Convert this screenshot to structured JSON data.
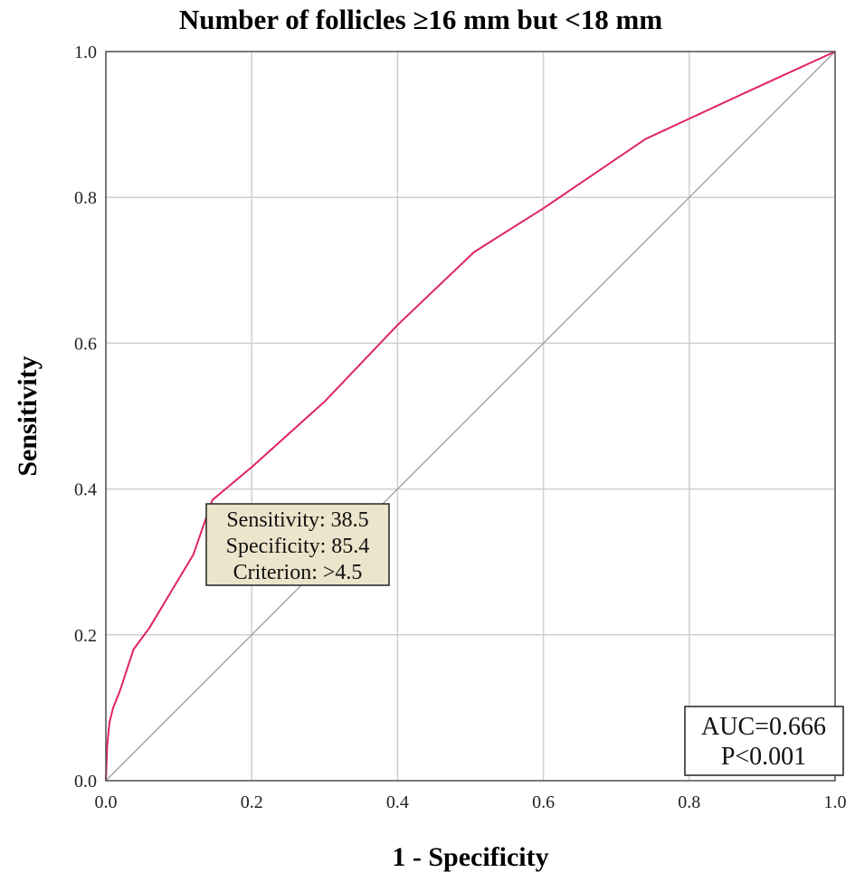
{
  "chart_data": {
    "type": "line",
    "title": "Number of follicles ≥16 mm but <18 mm",
    "xlabel": "1 - Specificity",
    "ylabel": "Sensitivity",
    "xlim": [
      0,
      1
    ],
    "ylim": [
      0,
      1
    ],
    "xticks": [
      "0.0",
      "0.2",
      "0.4",
      "0.6",
      "0.8",
      "1.0"
    ],
    "yticks": [
      "0.0",
      "0.2",
      "0.4",
      "0.6",
      "0.8",
      "1.0"
    ],
    "grid": true,
    "series": [
      {
        "color": "#e0245e",
        "x": [
          0,
          0.002,
          0.005,
          0.01,
          0.02,
          0.028,
          0.038,
          0.06,
          0.09,
          0.12,
          0.146,
          0.2,
          0.3,
          0.4,
          0.505,
          0.6,
          0.74,
          0.88,
          1.0
        ],
        "y": [
          0,
          0.05,
          0.08,
          0.1,
          0.125,
          0.15,
          0.18,
          0.21,
          0.26,
          0.31,
          0.385,
          0.43,
          0.52,
          0.625,
          0.725,
          0.785,
          0.88,
          0.945,
          1.0
        ]
      },
      {
        "color": "#999999",
        "x": [
          0,
          1
        ],
        "y": [
          0,
          1
        ]
      }
    ],
    "cutoff": {
      "x": 0.146,
      "y": 0.385,
      "lines": [
        "Sensitivity: 38.5",
        "Specificity: 85.4",
        "Criterion: >4.5"
      ]
    },
    "annotation": {
      "lines": [
        "AUC=0.666",
        "P<0.001"
      ]
    }
  }
}
